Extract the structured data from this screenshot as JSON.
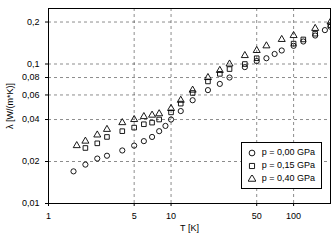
{
  "chart_data": {
    "type": "scatter",
    "x_label": "T [K]",
    "y_label": "λ [W/(m*K)]",
    "log": true,
    "grid": true,
    "legend": "lower right",
    "xlim": [
      1,
      200
    ],
    "ylim": [
      0.01,
      0.25
    ],
    "xticks": [
      1,
      5,
      10,
      50,
      100
    ],
    "yticks": [
      {
        "value": 0.01,
        "label": "0,01"
      },
      {
        "value": 0.02,
        "label": "0,02"
      },
      {
        "value": 0.04,
        "label": "0,04"
      },
      {
        "value": 0.06,
        "label": "0,06"
      },
      {
        "value": 0.08,
        "label": "0,08"
      },
      {
        "value": 0.1,
        "label": "0,1"
      },
      {
        "value": 0.2,
        "label": "0,2"
      }
    ],
    "series": [
      {
        "name": "p = 0,00 GPa",
        "color": "#000000",
        "marker": "circle",
        "x": [
          1.6,
          2,
          2.5,
          3,
          4,
          5,
          6,
          7,
          8,
          9,
          10,
          12,
          15,
          20,
          25,
          30,
          40,
          50,
          60,
          70,
          80,
          100,
          120,
          150,
          180,
          200
        ],
        "values": [
          0.017,
          0.019,
          0.021,
          0.022,
          0.024,
          0.026,
          0.028,
          0.03,
          0.033,
          0.036,
          0.04,
          0.046,
          0.055,
          0.065,
          0.072,
          0.08,
          0.095,
          0.105,
          0.11,
          0.118,
          0.125,
          0.135,
          0.145,
          0.16,
          0.175,
          0.185
        ]
      },
      {
        "name": "p = 0,15 GPa",
        "color": "#000000",
        "marker": "square",
        "x": [
          2,
          2.5,
          3,
          4,
          5,
          6,
          7,
          8,
          10,
          12,
          15,
          20,
          25,
          30,
          40,
          50,
          100,
          120,
          150,
          200
        ],
        "values": [
          0.025,
          0.027,
          0.03,
          0.033,
          0.035,
          0.037,
          0.038,
          0.04,
          0.045,
          0.052,
          0.062,
          0.075,
          0.085,
          0.092,
          0.1,
          0.11,
          0.14,
          0.15,
          0.165,
          0.19
        ]
      },
      {
        "name": "p = 0,40 GPa",
        "color": "#000000",
        "marker": "triangle",
        "x": [
          1.7,
          2,
          2.5,
          3,
          4,
          5,
          6,
          7,
          8,
          10,
          12,
          15,
          20,
          25,
          30,
          40,
          50,
          60,
          80,
          100,
          150,
          200
        ],
        "values": [
          0.026,
          0.028,
          0.031,
          0.034,
          0.038,
          0.04,
          0.042,
          0.043,
          0.044,
          0.048,
          0.055,
          0.065,
          0.08,
          0.09,
          0.1,
          0.115,
          0.125,
          0.135,
          0.15,
          0.16,
          0.18,
          0.2
        ]
      }
    ]
  }
}
